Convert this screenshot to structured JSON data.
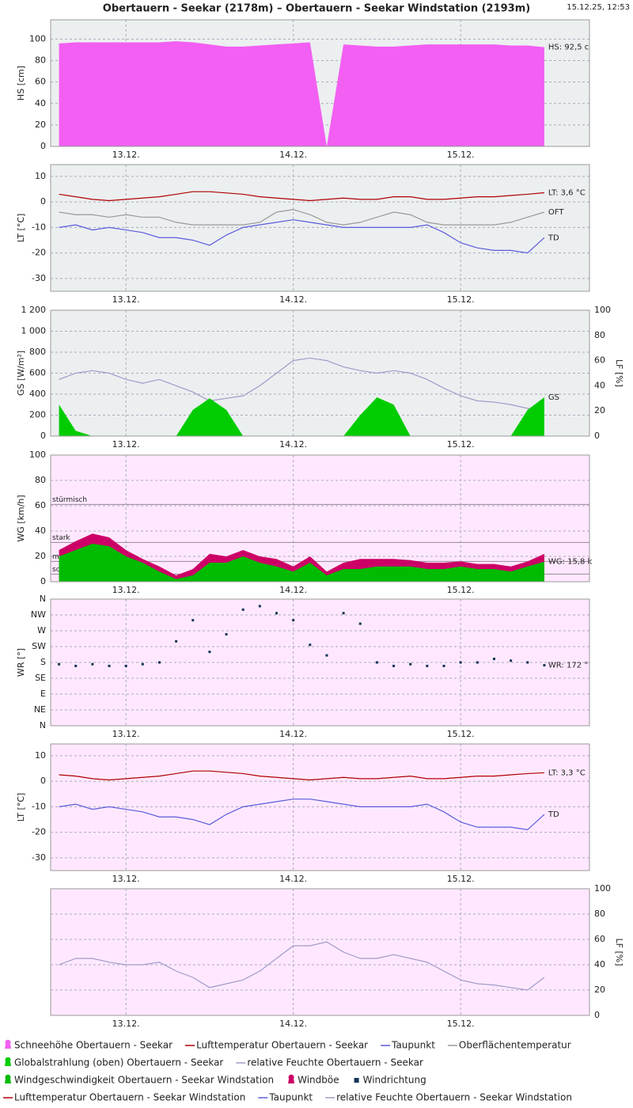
{
  "header": {
    "title": "Obertauern - Seekar (2178m) – Obertauern - Seekar Windstation (2193m)",
    "timestamp": "15.12.25, 12:53"
  },
  "chart_data": [
    {
      "type": "combo",
      "background": "#eceff0",
      "ylabel": "HS [cm]",
      "ycolor": "#e040e0",
      "xlim": [
        12.55,
        15.77
      ],
      "xticks": [
        {
          "value": 13,
          "label": "13.12."
        },
        {
          "value": 14,
          "label": "14.12."
        },
        {
          "value": 15,
          "label": "15.12."
        }
      ],
      "ylim": [
        0,
        118
      ],
      "yticks": [
        0,
        20,
        40,
        60,
        80,
        100
      ],
      "grid": true,
      "x": [
        12.6,
        12.7,
        12.8,
        12.9,
        13.0,
        13.1,
        13.2,
        13.3,
        13.4,
        13.5,
        13.6,
        13.7,
        13.8,
        13.9,
        14.0,
        14.1,
        14.2,
        14.3,
        14.4,
        14.5,
        14.6,
        14.7,
        14.8,
        14.9,
        15.0,
        15.1,
        15.2,
        15.3,
        15.4,
        15.5
      ],
      "series": [
        {
          "name": "Schneehöhe Obertauern - Seekar",
          "type": "area",
          "color": "#f25ff2",
          "end_label": "HS: 92,5 c",
          "values": [
            96,
            97,
            97,
            97,
            97,
            97,
            97,
            98,
            97,
            95,
            93,
            93,
            94,
            95,
            96,
            97,
            0,
            95,
            94,
            93,
            93,
            94,
            95,
            95,
            95,
            95,
            95,
            94,
            94,
            92.5
          ]
        }
      ]
    },
    {
      "type": "combo",
      "background": "#eceff0",
      "ylabel": "LT [°C]",
      "ycolor": "#aa0000",
      "xlim": [
        12.55,
        15.77
      ],
      "xticks": [
        {
          "value": 13,
          "label": "13.12."
        },
        {
          "value": 14,
          "label": "14.12."
        },
        {
          "value": 15,
          "label": "15.12."
        }
      ],
      "ylim": [
        -35,
        14.6
      ],
      "yticks": [
        -30,
        -20,
        -10,
        0,
        10
      ],
      "grid": true,
      "x": [
        12.6,
        12.7,
        12.8,
        12.9,
        13.0,
        13.1,
        13.2,
        13.3,
        13.4,
        13.5,
        13.6,
        13.7,
        13.8,
        13.9,
        14.0,
        14.1,
        14.2,
        14.3,
        14.4,
        14.5,
        14.6,
        14.7,
        14.8,
        14.9,
        15.0,
        15.1,
        15.2,
        15.3,
        15.4,
        15.5
      ],
      "series": [
        {
          "name": "Lufttemperatur Obertauern - Seekar",
          "type": "line",
          "color": "#b00000",
          "end_label": "LT: 3,6 °C",
          "values": [
            3,
            2,
            1,
            0.5,
            1,
            1.5,
            2,
            3,
            4,
            4,
            3.5,
            3,
            2,
            1.5,
            1,
            0.5,
            1,
            1.5,
            1,
            1,
            2,
            2,
            1,
            1,
            1.5,
            2,
            2,
            2.5,
            3,
            3.6
          ]
        },
        {
          "name": "Taupunkt",
          "type": "line",
          "color": "#5b5bdc",
          "end_label": "TD",
          "values": [
            -10,
            -9,
            -11,
            -10,
            -11,
            -12,
            -14,
            -14,
            -15,
            -17,
            -13,
            -10,
            -9,
            -8,
            -7,
            -8,
            -9,
            -10,
            -10,
            -10,
            -10,
            -10,
            -9,
            -12,
            -16,
            -18,
            -19,
            -19,
            -20,
            -14
          ]
        },
        {
          "name": "Oberflächentemperatur",
          "type": "line",
          "color": "#999999",
          "end_label": "OFT",
          "values": [
            -4,
            -5,
            -5,
            -6,
            -5,
            -6,
            -6,
            -8,
            -9,
            -9,
            -9,
            -9,
            -8,
            -4,
            -3,
            -5,
            -8,
            -9,
            -8,
            -6,
            -4,
            -5,
            -8,
            -9,
            -9,
            -9,
            -9,
            -8,
            -6,
            -4
          ]
        }
      ]
    },
    {
      "type": "combo",
      "background": "#eceff0",
      "ylabel": "GS [W/m²]",
      "ycolor": "#00aa00",
      "y2label": "LF [%]",
      "y2color": "#a09ac8",
      "xlim": [
        12.55,
        15.77
      ],
      "xticks": [
        {
          "value": 13,
          "label": "13.12."
        },
        {
          "value": 14,
          "label": "14.12."
        },
        {
          "value": 15,
          "label": "15.12."
        }
      ],
      "ylim": [
        0,
        1200
      ],
      "yticks": [
        0,
        200,
        400,
        600,
        800,
        {
          "value": 1000,
          "label": "1 000"
        },
        {
          "value": 1200,
          "label": "1 200"
        }
      ],
      "y2lim": [
        0,
        100
      ],
      "y2ticks": [
        0,
        20,
        40,
        60,
        80,
        100
      ],
      "grid": true,
      "x": [
        12.6,
        12.7,
        12.8,
        12.9,
        13.0,
        13.1,
        13.2,
        13.3,
        13.4,
        13.5,
        13.6,
        13.7,
        13.8,
        13.9,
        14.0,
        14.1,
        14.2,
        14.3,
        14.4,
        14.5,
        14.6,
        14.7,
        14.8,
        14.9,
        15.0,
        15.1,
        15.2,
        15.3,
        15.4,
        15.5
      ],
      "series": [
        {
          "name": "Globalstrahlung (oben) Obertauern - Seekar",
          "type": "area",
          "color": "#00cc00",
          "end_label": "GS",
          "values": [
            300,
            50,
            0,
            0,
            0,
            0,
            0,
            0,
            250,
            360,
            250,
            0,
            0,
            0,
            0,
            0,
            0,
            0,
            200,
            370,
            300,
            0,
            0,
            0,
            0,
            0,
            0,
            0,
            250,
            370
          ]
        },
        {
          "name": "relative Feuchte Obertauern - Seekar",
          "type": "line",
          "axis": "y2",
          "color": "#a09ac8",
          "values": [
            45,
            50,
            52,
            50,
            45,
            42,
            45,
            40,
            35,
            28,
            30,
            32,
            40,
            50,
            60,
            62,
            60,
            55,
            52,
            50,
            52,
            50,
            45,
            38,
            32,
            28,
            27,
            25,
            22,
            20
          ]
        }
      ]
    },
    {
      "type": "combo",
      "background": "#ffe8ff",
      "ylabel": "WG [km/h]",
      "ycolor": "#00aa00",
      "xlim": [
        12.55,
        15.77
      ],
      "xticks": [
        {
          "value": 13,
          "label": "13.12."
        },
        {
          "value": 14,
          "label": "14.12."
        },
        {
          "value": 15,
          "label": "15.12."
        }
      ],
      "ylim": [
        0,
        100
      ],
      "yticks": [
        0,
        20,
        40,
        60,
        80,
        100
      ],
      "grid": true,
      "thresholds": [
        {
          "label": "stürmisch",
          "value": 61
        },
        {
          "label": "stark",
          "value": 31
        },
        {
          "label": "mäßig",
          "value": 16
        },
        {
          "label": "schwach",
          "value": 6
        }
      ],
      "x": [
        12.6,
        12.7,
        12.8,
        12.9,
        13.0,
        13.1,
        13.2,
        13.3,
        13.4,
        13.5,
        13.6,
        13.7,
        13.8,
        13.9,
        14.0,
        14.1,
        14.2,
        14.3,
        14.4,
        14.5,
        14.6,
        14.7,
        14.8,
        14.9,
        15.0,
        15.1,
        15.2,
        15.3,
        15.4,
        15.5
      ],
      "series": [
        {
          "name": "Windgeschwindigkeit Obertauern - Seekar Windstation",
          "type": "area",
          "color": "#00bb00",
          "end_label": "WG: 15,8 k",
          "values": [
            20,
            25,
            30,
            28,
            20,
            15,
            8,
            2,
            5,
            15,
            15,
            20,
            15,
            12,
            8,
            15,
            5,
            10,
            10,
            12,
            12,
            12,
            10,
            10,
            12,
            10,
            10,
            8,
            12,
            15.8
          ]
        },
        {
          "name": "Windböe",
          "type": "area",
          "color": "#cc0066",
          "values": [
            25,
            32,
            38,
            35,
            25,
            18,
            12,
            5,
            10,
            22,
            20,
            25,
            20,
            18,
            12,
            20,
            8,
            15,
            18,
            18,
            18,
            17,
            15,
            15,
            16,
            14,
            14,
            12,
            16,
            22
          ]
        }
      ]
    },
    {
      "type": "combo",
      "background": "#ffe8ff",
      "ylabel": "WR [°]",
      "ycolor": "#123456",
      "xlim": [
        12.55,
        15.77
      ],
      "xticks": [
        {
          "value": 13,
          "label": "13.12."
        },
        {
          "value": 14,
          "label": "14.12."
        },
        {
          "value": 15,
          "label": "15.12."
        }
      ],
      "ylim": [
        0,
        360
      ],
      "yticks": [
        {
          "value": 0,
          "label": "N"
        },
        {
          "value": 45,
          "label": "NE"
        },
        {
          "value": 90,
          "label": "E"
        },
        {
          "value": 135,
          "label": "SE"
        },
        {
          "value": 180,
          "label": "S"
        },
        {
          "value": 225,
          "label": "SW"
        },
        {
          "value": 270,
          "label": "W"
        },
        {
          "value": 315,
          "label": "NW"
        },
        {
          "value": 360,
          "label": "N"
        }
      ],
      "grid": true,
      "x": [
        12.6,
        12.7,
        12.8,
        12.9,
        13.0,
        13.1,
        13.2,
        13.3,
        13.4,
        13.5,
        13.6,
        13.7,
        13.8,
        13.9,
        14.0,
        14.1,
        14.2,
        14.3,
        14.4,
        14.5,
        14.6,
        14.7,
        14.8,
        14.9,
        15.0,
        15.1,
        15.2,
        15.3,
        15.4,
        15.5
      ],
      "series": [
        {
          "name": "Windrichtung",
          "type": "scatter",
          "color": "#123456",
          "end_label": "WR: 172 °",
          "values": [
            175,
            170,
            175,
            170,
            170,
            175,
            180,
            240,
            300,
            210,
            260,
            330,
            340,
            320,
            300,
            230,
            200,
            320,
            290,
            180,
            170,
            175,
            170,
            170,
            180,
            180,
            190,
            185,
            180,
            172
          ]
        }
      ]
    },
    {
      "type": "combo",
      "background": "#ffe8ff",
      "ylabel": "LT [°C]",
      "ycolor": "#aa0000",
      "xlim": [
        12.55,
        15.77
      ],
      "xticks": [
        {
          "value": 13,
          "label": "13.12."
        },
        {
          "value": 14,
          "label": "14.12."
        },
        {
          "value": 15,
          "label": "15.12."
        }
      ],
      "ylim": [
        -35,
        14.6
      ],
      "yticks": [
        -30,
        -20,
        -10,
        0,
        10
      ],
      "grid": true,
      "x": [
        12.6,
        12.7,
        12.8,
        12.9,
        13.0,
        13.1,
        13.2,
        13.3,
        13.4,
        13.5,
        13.6,
        13.7,
        13.8,
        13.9,
        14.0,
        14.1,
        14.2,
        14.3,
        14.4,
        14.5,
        14.6,
        14.7,
        14.8,
        14.9,
        15.0,
        15.1,
        15.2,
        15.3,
        15.4,
        15.5
      ],
      "series": [
        {
          "name": "Lufttemperatur Obertauern - Seekar Windstation",
          "type": "line",
          "color": "#b00000",
          "end_label": "LT: 3,3 °C",
          "values": [
            2.5,
            2,
            1,
            0.5,
            1,
            1.5,
            2,
            3,
            4,
            4,
            3.5,
            3,
            2,
            1.5,
            1,
            0.5,
            1,
            1.5,
            1,
            1,
            1.5,
            2,
            1,
            1,
            1.5,
            2,
            2,
            2.5,
            3,
            3.3
          ]
        },
        {
          "name": "Taupunkt",
          "type": "line",
          "color": "#5b5bdc",
          "end_label": "TD",
          "values": [
            -10,
            -9,
            -11,
            -10,
            -11,
            -12,
            -14,
            -14,
            -15,
            -17,
            -13,
            -10,
            -9,
            -8,
            -7,
            -7,
            -8,
            -9,
            -10,
            -10,
            -10,
            -10,
            -9,
            -12,
            -16,
            -18,
            -18,
            -18,
            -19,
            -13
          ]
        }
      ]
    },
    {
      "type": "combo",
      "background": "#ffe8ff",
      "y2label": "LF [%]",
      "y2color": "#a09ac8",
      "xlim": [
        12.55,
        15.77
      ],
      "xticks": [
        {
          "value": 13,
          "label": "13.12."
        },
        {
          "value": 14,
          "label": "14.12."
        },
        {
          "value": 15,
          "label": "15.12."
        }
      ],
      "y2lim": [
        0,
        100
      ],
      "y2ticks": [
        0,
        20,
        40,
        60,
        80,
        100
      ],
      "grid": true,
      "x": [
        12.6,
        12.7,
        12.8,
        12.9,
        13.0,
        13.1,
        13.2,
        13.3,
        13.4,
        13.5,
        13.6,
        13.7,
        13.8,
        13.9,
        14.0,
        14.1,
        14.2,
        14.3,
        14.4,
        14.5,
        14.6,
        14.7,
        14.8,
        14.9,
        15.0,
        15.1,
        15.2,
        15.3,
        15.4,
        15.5
      ],
      "series": [
        {
          "name": "relative Feuchte Obertauern - Seekar Windstation",
          "type": "line",
          "axis": "y2",
          "color": "#a09ac8",
          "values": [
            40,
            45,
            45,
            42,
            40,
            40,
            42,
            35,
            30,
            22,
            25,
            28,
            35,
            45,
            55,
            55,
            58,
            50,
            45,
            45,
            48,
            45,
            42,
            35,
            28,
            25,
            24,
            22,
            20,
            30
          ]
        }
      ]
    }
  ]
}
